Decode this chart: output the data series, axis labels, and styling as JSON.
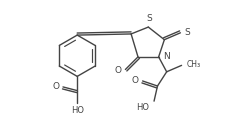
{
  "background_color": "#ffffff",
  "line_color": "#444444",
  "line_width": 1.0,
  "figsize": [
    2.37,
    1.39
  ],
  "dpi": 100,
  "xlim": [
    0.0,
    10.0
  ],
  "ylim": [
    0.0,
    6.0
  ]
}
